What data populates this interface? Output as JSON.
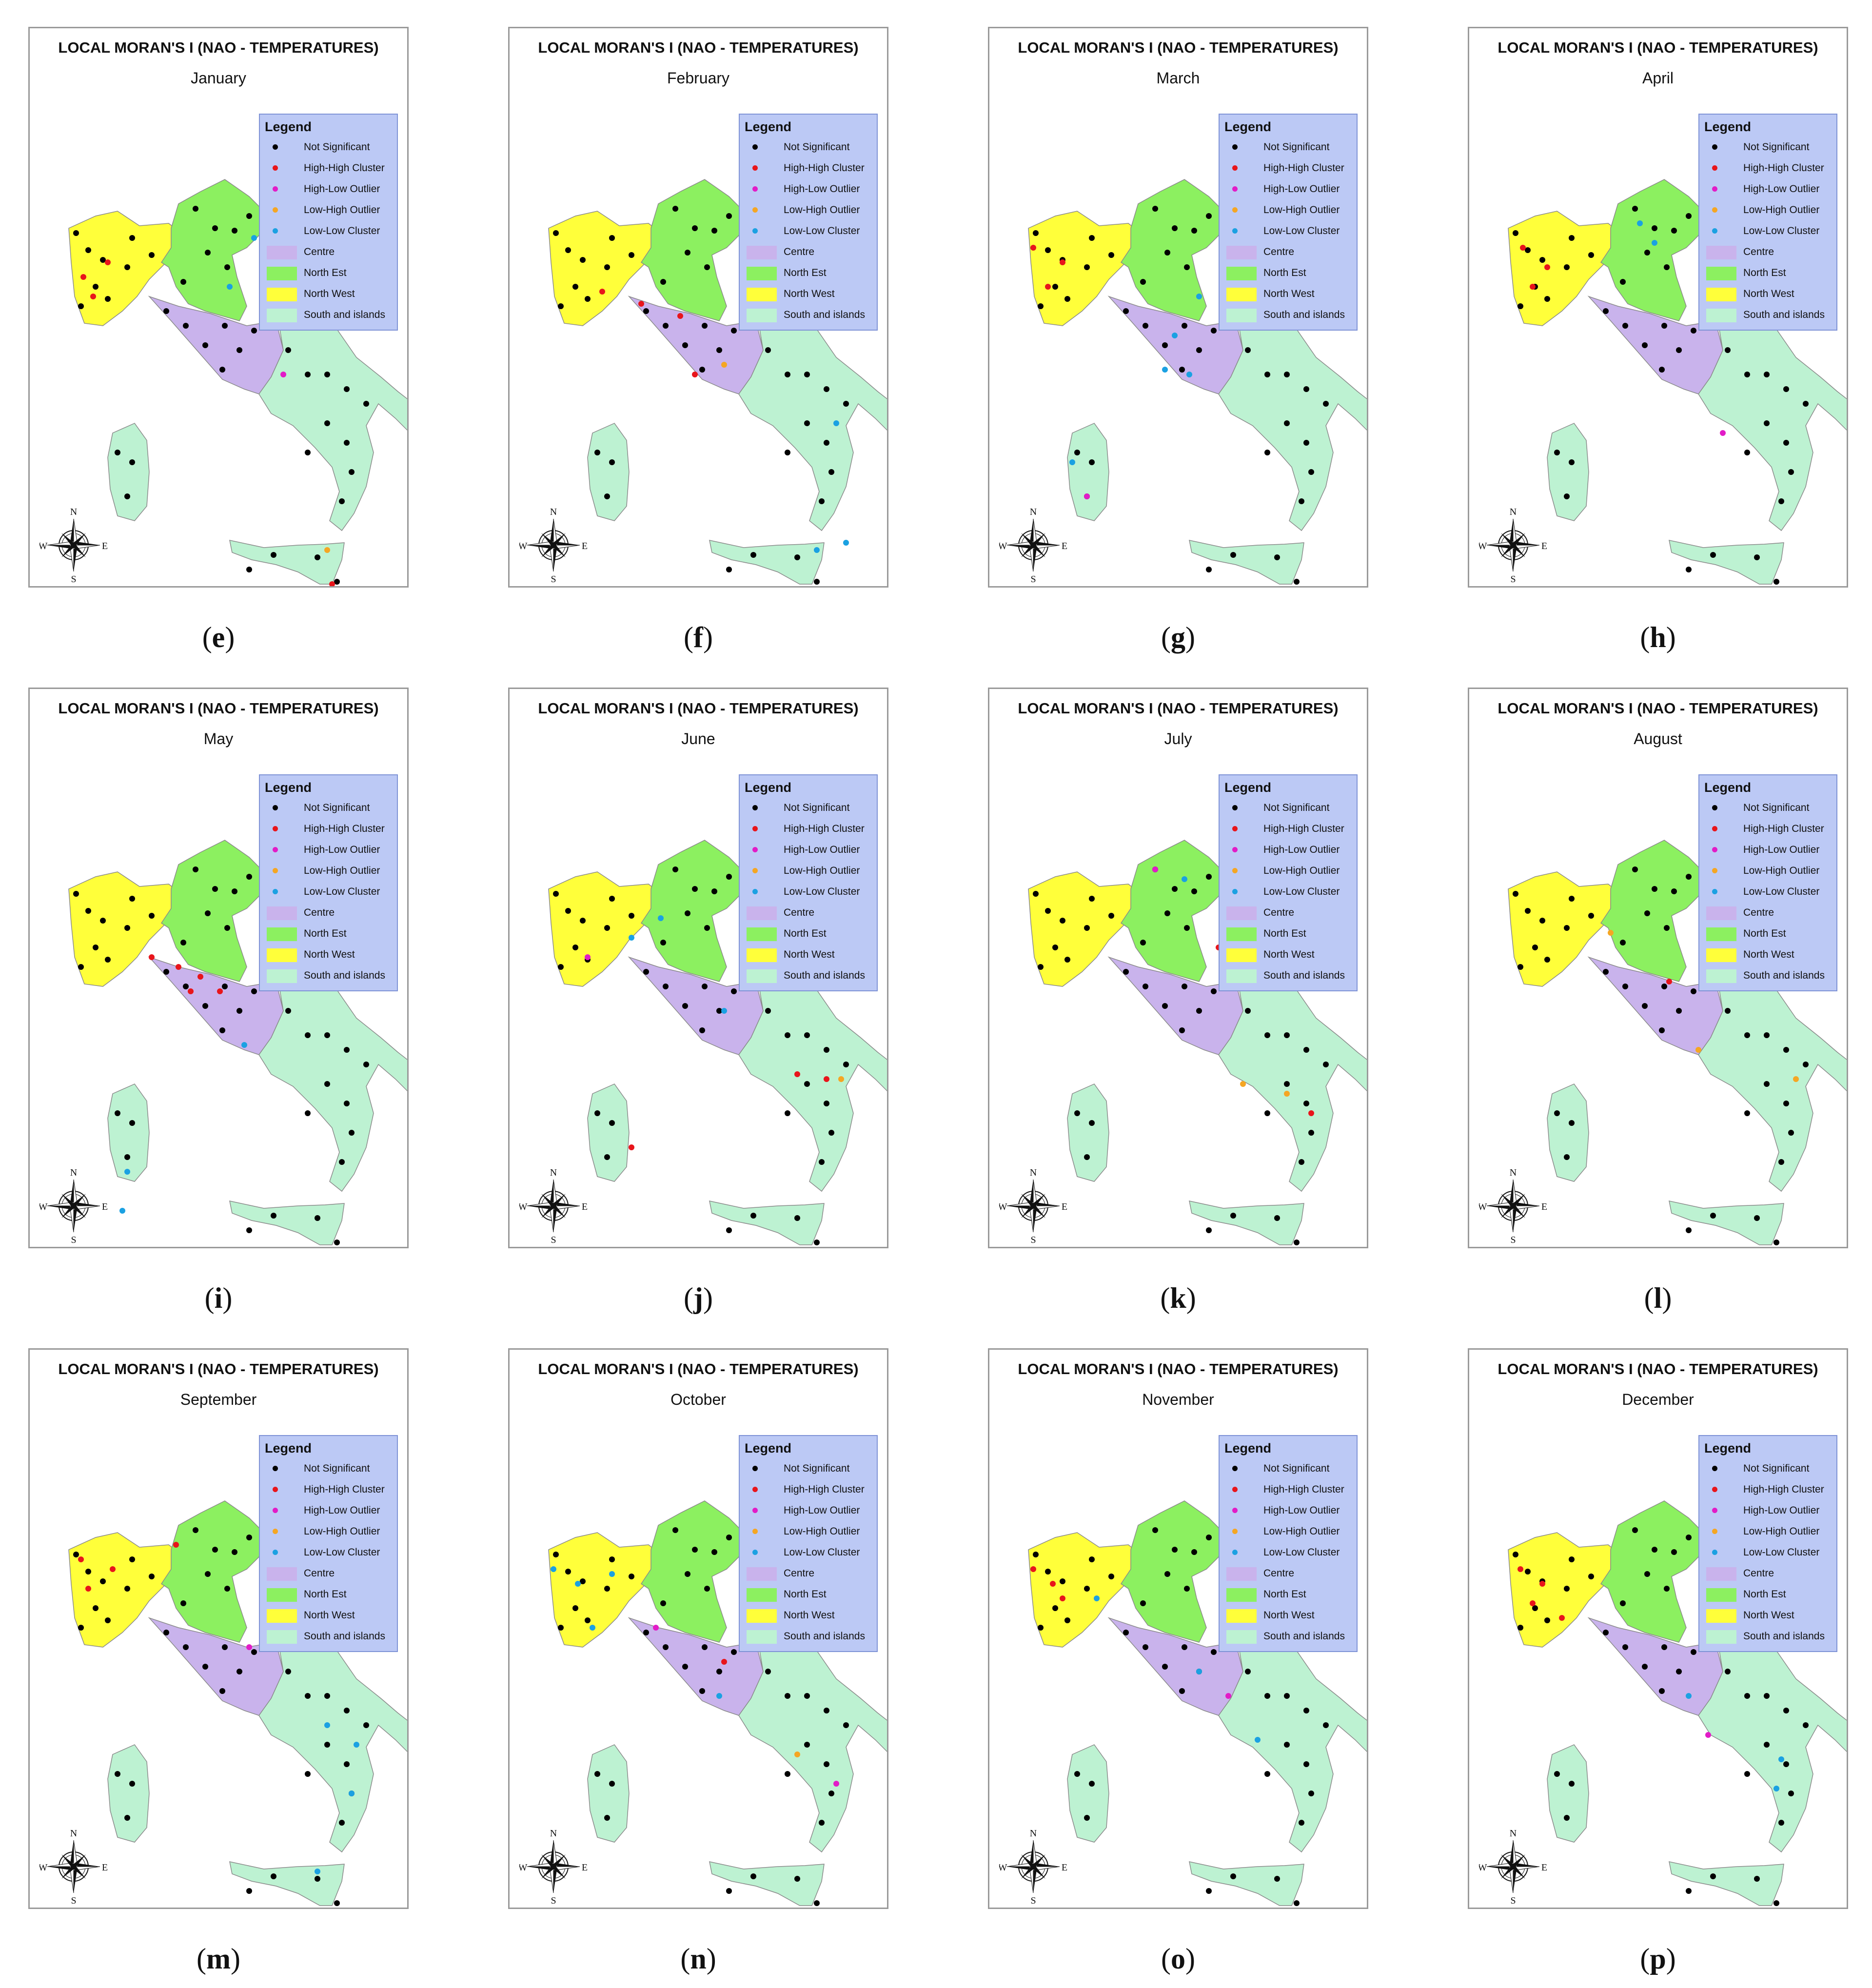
{
  "figure": {
    "panel_title": "LOCAL MORAN'S I (NAO - TEMPERATURES)",
    "legend_title": "Legend",
    "legend_items": [
      {
        "label": "Not Significant",
        "kind": "dot",
        "color": "#000000"
      },
      {
        "label": "High-High Cluster",
        "kind": "dot",
        "color": "#e8151b"
      },
      {
        "label": "High-Low Outlier",
        "kind": "dot",
        "color": "#e21cc7"
      },
      {
        "label": "Low-High Outlier",
        "kind": "dot",
        "color": "#f5a623"
      },
      {
        "label": "Low-Low Cluster",
        "kind": "dot",
        "color": "#1ba1e2"
      },
      {
        "label": "Centre",
        "kind": "patch",
        "color": "#c9b3ec"
      },
      {
        "label": "North Est",
        "kind": "patch",
        "color": "#8cf060"
      },
      {
        "label": "North West",
        "kind": "patch",
        "color": "#ffff3a"
      },
      {
        "label": "South and islands",
        "kind": "patch",
        "color": "#bdf2d2"
      }
    ],
    "compass": {
      "n": "N",
      "s": "S",
      "e": "E",
      "w": "W"
    }
  },
  "panels": [
    {
      "letter": "e",
      "month": "January"
    },
    {
      "letter": "f",
      "month": "February"
    },
    {
      "letter": "g",
      "month": "March"
    },
    {
      "letter": "h",
      "month": "April"
    },
    {
      "letter": "i",
      "month": "May"
    },
    {
      "letter": "j",
      "month": "June"
    },
    {
      "letter": "k",
      "month": "July"
    },
    {
      "letter": "l",
      "month": "August"
    },
    {
      "letter": "m",
      "month": "September"
    },
    {
      "letter": "n",
      "month": "October"
    },
    {
      "letter": "o",
      "month": "November"
    },
    {
      "letter": "p",
      "month": "December"
    }
  ]
}
